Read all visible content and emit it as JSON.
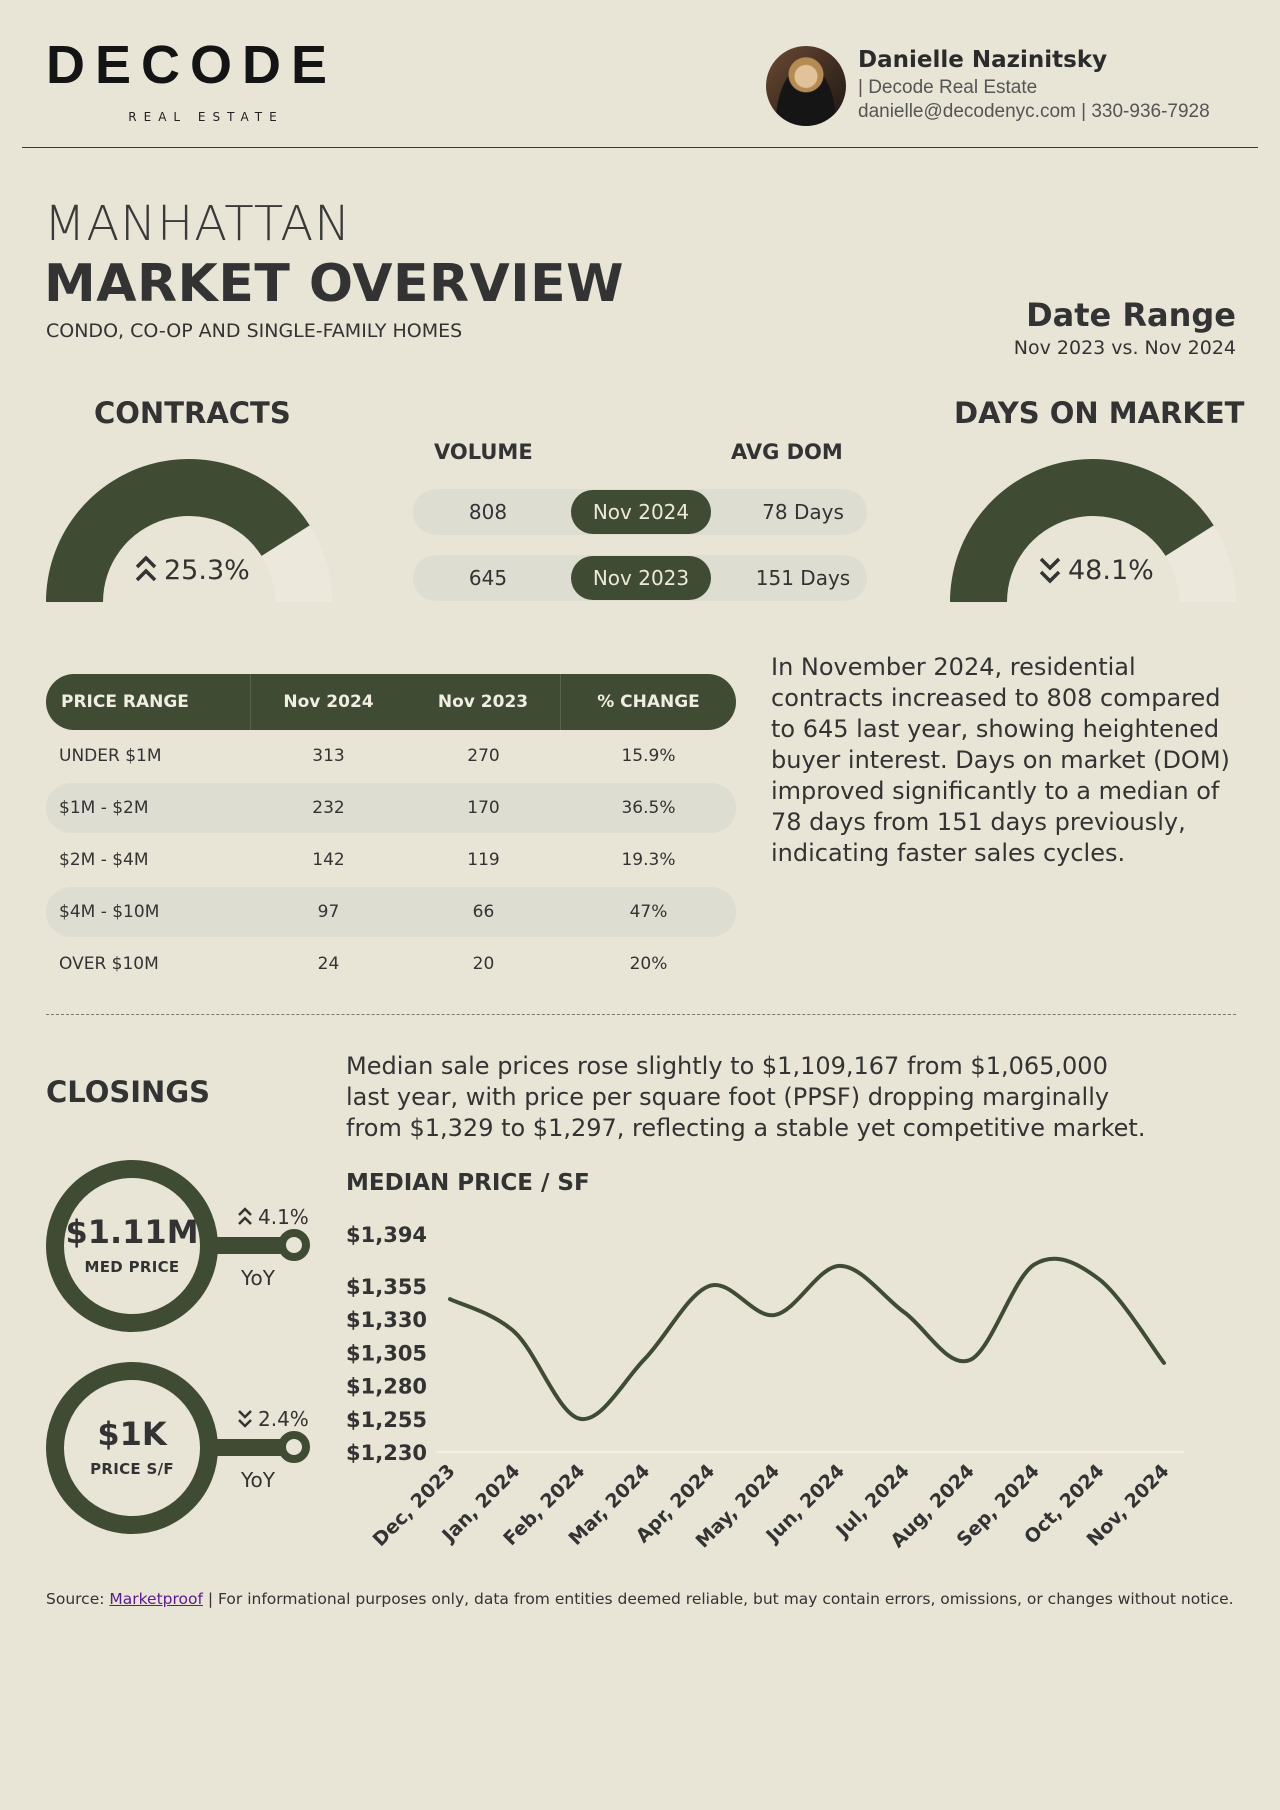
{
  "header": {
    "logo": "DECODE",
    "logo_sub": "REAL ESTATE",
    "agent_name": "Danielle Nazinitsky",
    "agent_company": "| Decode Real Estate",
    "agent_contact": "danielle@decodenyc.com | 330-936-7928"
  },
  "title": {
    "line1": "MANHATTAN",
    "line2": "MARKET OVERVIEW",
    "line3": "CONDO, CO-OP AND SINGLE-FAMILY HOMES",
    "date_label": "Date Range",
    "date_range": "Nov 2023 vs. Nov 2024"
  },
  "contracts": {
    "heading": "CONTRACTS",
    "change": "25.3%",
    "direction": "up",
    "gauge_fill": 0.82
  },
  "dom": {
    "heading": "DAYS ON MARKET",
    "change": "48.1%",
    "direction": "down",
    "gauge_fill": 0.82
  },
  "compare": {
    "volume_label": "VOLUME",
    "dom_label": "AVG DOM",
    "rows": [
      {
        "volume": "808",
        "period": "Nov 2024",
        "dom": "78 Days"
      },
      {
        "volume": "645",
        "period": "Nov 2023",
        "dom": "151 Days"
      }
    ]
  },
  "price_table": {
    "headers": [
      "PRICE RANGE",
      "Nov 2024",
      "Nov 2023",
      "% CHANGE"
    ],
    "rows": [
      [
        "UNDER $1M",
        "313",
        "270",
        "15.9%"
      ],
      [
        "$1M - $2M",
        "232",
        "170",
        "36.5%"
      ],
      [
        "$2M - $4M",
        "142",
        "119",
        "19.3%"
      ],
      [
        "$4M - $10M",
        "97",
        "66",
        "47%"
      ],
      [
        "OVER $10M",
        "24",
        "20",
        "20%"
      ]
    ]
  },
  "contracts_text": "In November 2024, residential contracts increased to 808 compared to 645 last year, showing heightened buyer interest. Days on market (DOM) improved significantly to a median of 78 days from 151 days previously, indicating faster sales cycles.",
  "closings": {
    "heading": "CLOSINGS",
    "text": "Median sale prices rose slightly to $1,109,167 from $1,065,000 last year, with price per square foot (PPSF) dropping marginally from $1,329 to $1,297, reflecting a stable yet competitive market.",
    "med_price": {
      "value": "$1.11M",
      "label": "MED PRICE",
      "change": "4.1%",
      "direction": "up",
      "yoy": "YoY"
    },
    "price_sf": {
      "value": "$1K",
      "label": "PRICE S/F",
      "change": "2.4%",
      "direction": "down",
      "yoy": "YoY"
    }
  },
  "chart_data": {
    "type": "line",
    "title": "MEDIAN PRICE / SF",
    "x": [
      "Dec, 2023",
      "Jan, 2024",
      "Feb, 2024",
      "Mar, 2024",
      "Apr, 2024",
      "May, 2024",
      "Jun, 2024",
      "Jul, 2024",
      "Aug, 2024",
      "Sep, 2024",
      "Oct, 2024",
      "Nov, 2024"
    ],
    "values": [
      1345,
      1320,
      1255,
      1300,
      1355,
      1333,
      1370,
      1335,
      1299,
      1371,
      1360,
      1297
    ],
    "y_ticks": [
      1230,
      1255,
      1280,
      1305,
      1330,
      1355,
      1394
    ],
    "y_tick_labels": [
      "$1,230",
      "$1,255",
      "$1,280",
      "$1,305",
      "$1,330",
      "$1,355",
      "$1,394"
    ],
    "ylim": [
      1230,
      1394
    ],
    "line_color": "#3f4b33"
  },
  "footer": {
    "source_label": "Source: ",
    "source_link": "Marketproof",
    "disclaimer": " | For informational purposes only, data from entities deemed reliable, but may contain errors, omissions, or changes without notice."
  },
  "colors": {
    "accent": "#3f4b33",
    "background": "#e8e4d6",
    "pill": "#deddd2"
  }
}
